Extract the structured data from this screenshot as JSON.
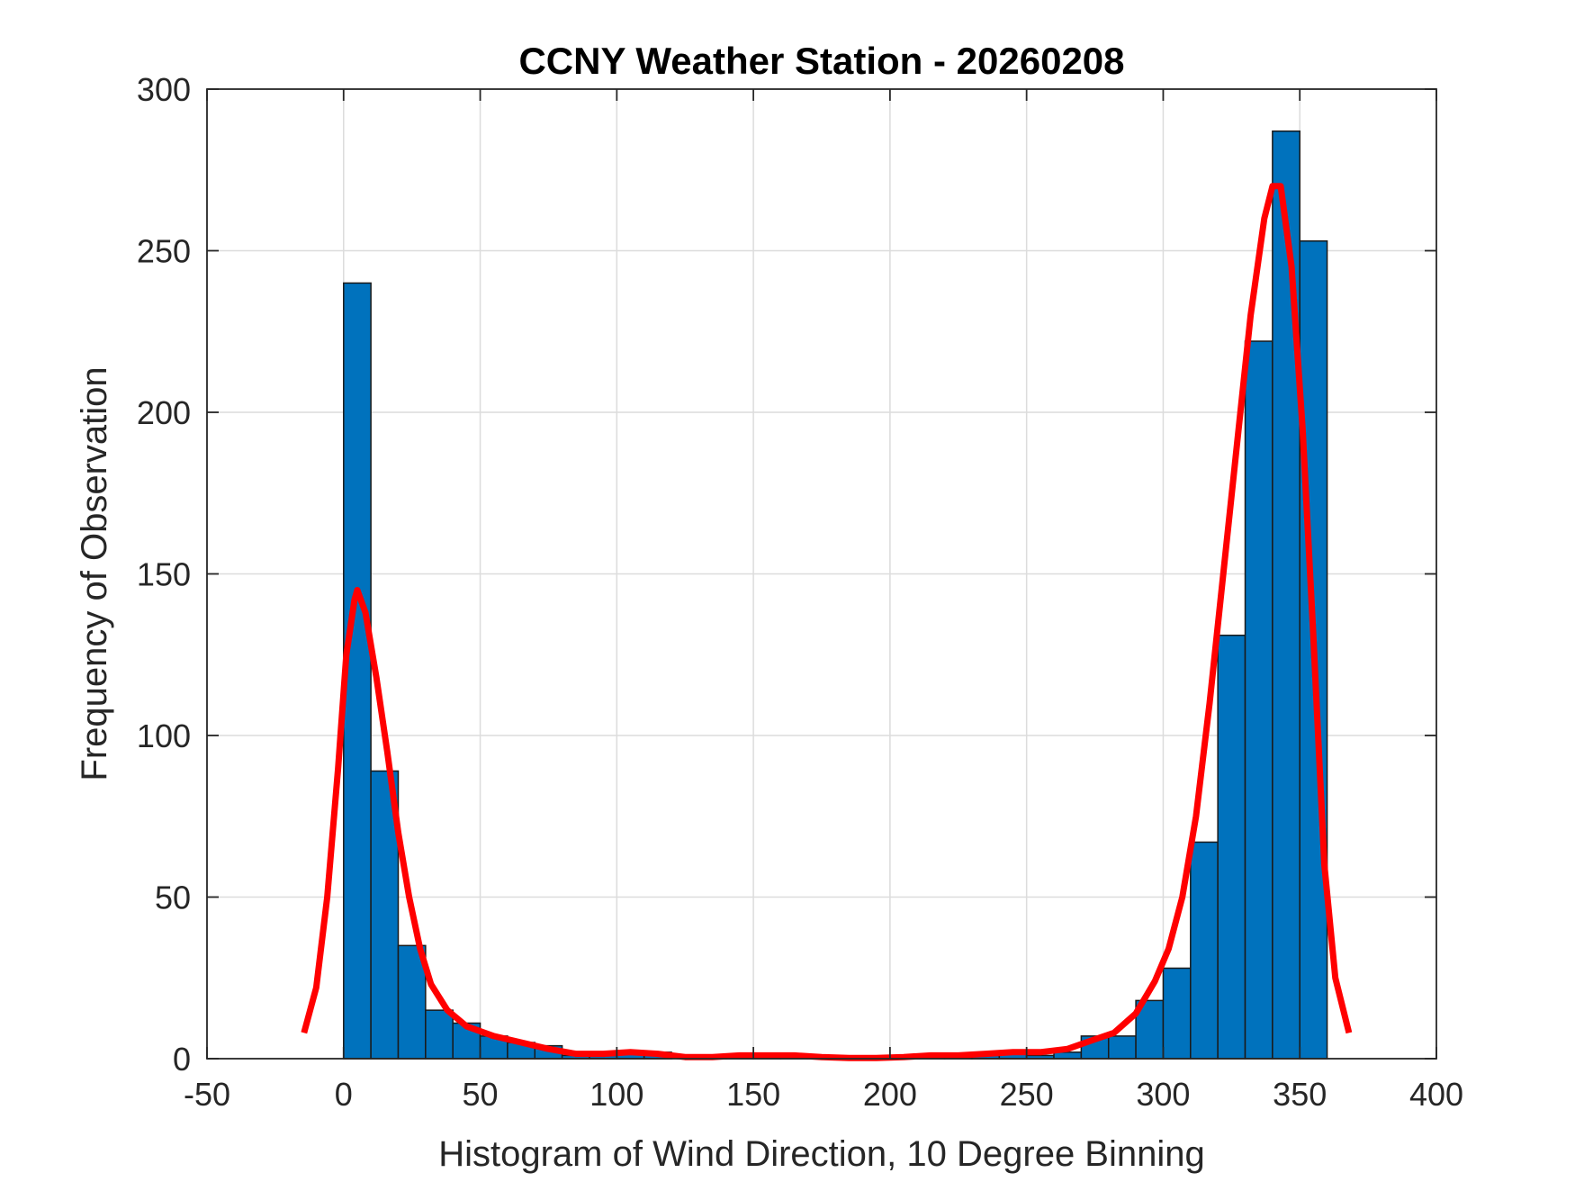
{
  "chart_data": {
    "type": "bar",
    "title": "CCNY Weather Station - 20260208",
    "xlabel": "Histogram of Wind Direction, 10 Degree Binning",
    "ylabel": "Frequency of Observation",
    "xlim": [
      -50,
      400
    ],
    "ylim": [
      0,
      300
    ],
    "xticks": [
      -50,
      0,
      50,
      100,
      150,
      200,
      250,
      300,
      350,
      400
    ],
    "yticks": [
      0,
      50,
      100,
      150,
      200,
      250,
      300
    ],
    "grid": true,
    "bin_width": 10,
    "bins": [
      {
        "start": 0,
        "value": 240
      },
      {
        "start": 10,
        "value": 89
      },
      {
        "start": 20,
        "value": 35
      },
      {
        "start": 30,
        "value": 15
      },
      {
        "start": 40,
        "value": 11
      },
      {
        "start": 50,
        "value": 7
      },
      {
        "start": 60,
        "value": 5
      },
      {
        "start": 70,
        "value": 4
      },
      {
        "start": 80,
        "value": 1
      },
      {
        "start": 90,
        "value": 1
      },
      {
        "start": 100,
        "value": 2
      },
      {
        "start": 110,
        "value": 2
      },
      {
        "start": 120,
        "value": 0
      },
      {
        "start": 130,
        "value": 1
      },
      {
        "start": 140,
        "value": 1
      },
      {
        "start": 150,
        "value": 1
      },
      {
        "start": 160,
        "value": 1
      },
      {
        "start": 170,
        "value": 0
      },
      {
        "start": 180,
        "value": 0
      },
      {
        "start": 190,
        "value": 0
      },
      {
        "start": 200,
        "value": 0
      },
      {
        "start": 210,
        "value": 1
      },
      {
        "start": 220,
        "value": 1
      },
      {
        "start": 230,
        "value": 1
      },
      {
        "start": 240,
        "value": 2
      },
      {
        "start": 250,
        "value": 1
      },
      {
        "start": 260,
        "value": 2
      },
      {
        "start": 270,
        "value": 7
      },
      {
        "start": 280,
        "value": 7
      },
      {
        "start": 290,
        "value": 18
      },
      {
        "start": 300,
        "value": 28
      },
      {
        "start": 310,
        "value": 67
      },
      {
        "start": 320,
        "value": 131
      },
      {
        "start": 330,
        "value": 222
      },
      {
        "start": 340,
        "value": 287
      },
      {
        "start": 350,
        "value": 253
      }
    ],
    "bar_color": "#0072BD",
    "curve": {
      "color": "#FF0000",
      "points": [
        [
          -14.5,
          8
        ],
        [
          -10,
          22
        ],
        [
          -6,
          50
        ],
        [
          -2,
          90
        ],
        [
          1,
          125
        ],
        [
          4,
          142
        ],
        [
          5,
          145
        ],
        [
          8,
          138
        ],
        [
          12,
          118
        ],
        [
          16,
          95
        ],
        [
          20,
          70
        ],
        [
          24,
          50
        ],
        [
          28,
          34
        ],
        [
          32,
          23
        ],
        [
          38,
          15
        ],
        [
          45,
          10
        ],
        [
          55,
          7
        ],
        [
          65,
          5
        ],
        [
          75,
          3
        ],
        [
          85,
          1.5
        ],
        [
          95,
          1.5
        ],
        [
          105,
          2
        ],
        [
          115,
          1.5
        ],
        [
          125,
          0.5
        ],
        [
          135,
          0.5
        ],
        [
          145,
          1
        ],
        [
          155,
          1
        ],
        [
          165,
          1
        ],
        [
          175,
          0.5
        ],
        [
          185,
          0.2
        ],
        [
          195,
          0.2
        ],
        [
          205,
          0.5
        ],
        [
          215,
          1
        ],
        [
          225,
          1
        ],
        [
          235,
          1.5
        ],
        [
          245,
          2
        ],
        [
          255,
          2
        ],
        [
          265,
          3
        ],
        [
          275,
          6
        ],
        [
          282,
          8
        ],
        [
          290,
          14
        ],
        [
          297,
          24
        ],
        [
          302,
          34
        ],
        [
          307,
          50
        ],
        [
          312,
          75
        ],
        [
          317,
          110
        ],
        [
          322,
          150
        ],
        [
          327,
          190
        ],
        [
          332,
          230
        ],
        [
          337,
          260
        ],
        [
          340,
          270
        ],
        [
          343,
          270
        ],
        [
          347,
          245
        ],
        [
          351,
          195
        ],
        [
          355,
          130
        ],
        [
          359,
          60
        ],
        [
          363,
          25
        ],
        [
          368,
          8
        ]
      ]
    }
  }
}
